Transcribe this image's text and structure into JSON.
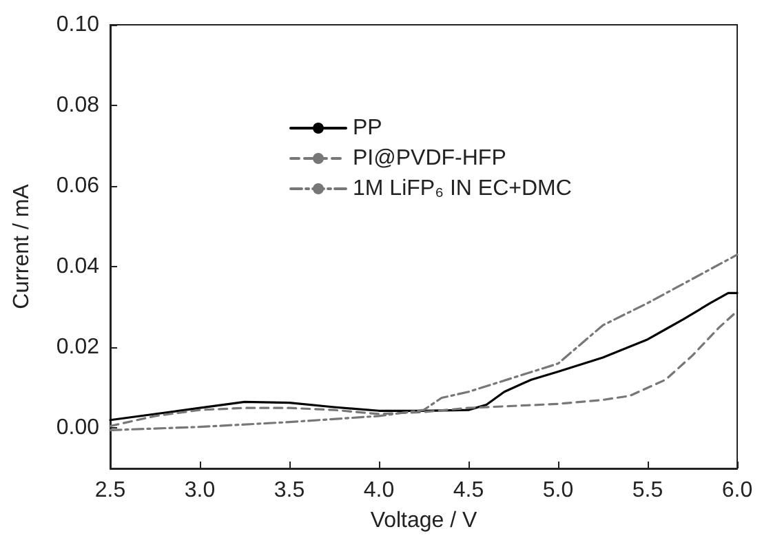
{
  "chart_data": {
    "type": "line",
    "xlabel": "Voltage / V",
    "ylabel": "Current / mA",
    "xlim": [
      2.5,
      6.0
    ],
    "xticks": [
      {
        "value": 2.5,
        "label": "2.5"
      },
      {
        "value": 3.0,
        "label": "3.0"
      },
      {
        "value": 3.5,
        "label": "3.5"
      },
      {
        "value": 4.0,
        "label": "4.0"
      },
      {
        "value": 4.5,
        "label": "4.5"
      },
      {
        "value": 5.0,
        "label": "5.0"
      },
      {
        "value": 5.5,
        "label": "5.5"
      },
      {
        "value": 6.0,
        "label": "6.0"
      }
    ],
    "ylim": [
      -0.01,
      0.1
    ],
    "yticks": [
      {
        "value": 0,
        "label": "0.00"
      },
      {
        "value": 0.02,
        "label": "0.02"
      },
      {
        "value": 0.04,
        "label": "0.04"
      },
      {
        "value": 0.06,
        "label": "0.06"
      },
      {
        "value": 0.08,
        "label": "0.08"
      },
      {
        "value": 0.1,
        "label": "0.10"
      }
    ],
    "grid": false,
    "legend": "top",
    "marker": "none",
    "series": [
      {
        "name": "PP",
        "color": "#000000",
        "line_style": "solid",
        "x": [
          2.5,
          2.75,
          3.0,
          3.25,
          3.5,
          3.75,
          4.0,
          4.25,
          4.5,
          4.6,
          4.7,
          4.85,
          5.0,
          5.25,
          5.5,
          5.6,
          5.7,
          5.85,
          5.95,
          6.0
        ],
        "values": [
          0.002,
          0.0035,
          0.005,
          0.0065,
          0.0063,
          0.0052,
          0.0043,
          0.0043,
          0.0045,
          0.0058,
          0.009,
          0.012,
          0.014,
          0.0175,
          0.022,
          0.0245,
          0.027,
          0.031,
          0.0335,
          0.0335
        ]
      },
      {
        "name": "PI@PVDF-HFP",
        "color": "#777777",
        "line_style": "dashed",
        "x": [
          2.5,
          2.75,
          3.0,
          3.25,
          3.5,
          3.75,
          4.0,
          4.25,
          4.5,
          4.75,
          5.0,
          5.25,
          5.4,
          5.6,
          5.75,
          5.9,
          6.0
        ],
        "values": [
          0.0005,
          0.003,
          0.0045,
          0.005,
          0.005,
          0.0045,
          0.0035,
          0.004,
          0.005,
          0.0055,
          0.006,
          0.007,
          0.008,
          0.012,
          0.018,
          0.025,
          0.029
        ]
      },
      {
        "name": "1M LiFP₆ IN EC+DMC",
        "color": "#777777",
        "line_style": "dashdot",
        "x": [
          2.5,
          3.0,
          3.5,
          4.0,
          4.25,
          4.35,
          4.5,
          4.75,
          5.0,
          5.25,
          5.5,
          5.75,
          6.0
        ],
        "values": [
          -0.0005,
          0.0003,
          0.0015,
          0.003,
          0.0045,
          0.0075,
          0.009,
          0.0125,
          0.016,
          0.0255,
          0.031,
          0.037,
          0.043
        ]
      }
    ]
  }
}
